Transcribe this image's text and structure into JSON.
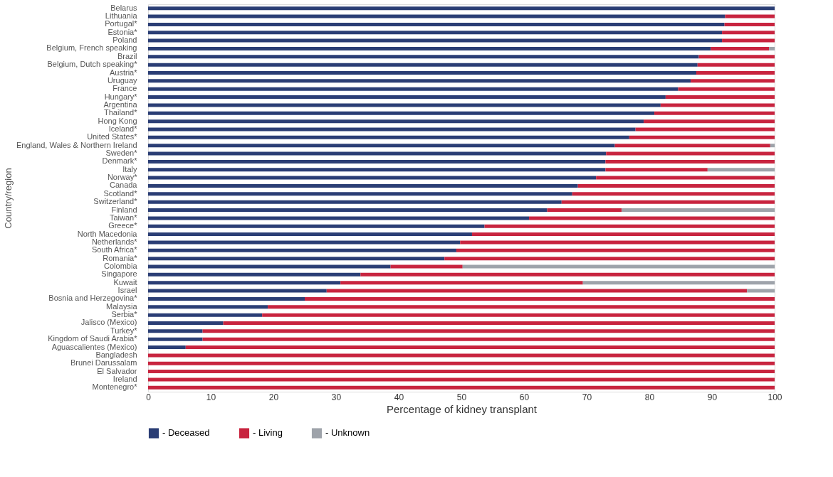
{
  "chart_data": {
    "type": "bar",
    "orientation": "horizontal",
    "stacked": true,
    "xlabel": "Percentage of kidney transplant",
    "ylabel": "Country/region",
    "categories": [
      "Belarus",
      "Lithuania",
      "Portugal*",
      "Estonia*",
      "Poland",
      "Belgium, French speaking",
      "Brazil",
      "Belgium, Dutch speaking*",
      "Austria*",
      "Uruguay",
      "France",
      "Hungary*",
      "Argentina",
      "Thailand*",
      "Hong Kong",
      "Iceland*",
      "United States*",
      "England, Wales & Northern Ireland",
      "Sweden*",
      "Denmark*",
      "Italy",
      "Norway*",
      "Canada",
      "Scotland*",
      "Switzerland*",
      "Finland",
      "Taiwan*",
      "Greece*",
      "North Macedonia",
      "Netherlands*",
      "South Africa*",
      "Romania*",
      "Colombia",
      "Singapore",
      "Kuwait",
      "Israel",
      "Bosnia and Herzegovina*",
      "Malaysia",
      "Serbia*",
      "Jalisco (Mexico)",
      "Turkey*",
      "Kingdom of Saudi Arabia*",
      "Aguascalientes (Mexico)",
      "Bangladesh",
      "Brunei Darussalam",
      "El Salvador",
      "Ireland",
      "Montenegro*"
    ],
    "series": [
      {
        "name": "- Deceased",
        "color": "#2b3e75",
        "values": [
          100,
          92.1,
          92.0,
          91.6,
          91.6,
          89.8,
          87.9,
          87.7,
          87.5,
          86.6,
          84.6,
          82.6,
          81.8,
          80.8,
          79.1,
          77.8,
          76.8,
          74.5,
          73.1,
          73.0,
          73.0,
          71.5,
          68.6,
          67.7,
          66.0,
          63.7,
          60.8,
          53.7,
          51.7,
          49.8,
          49.2,
          47.3,
          38.7,
          33.9,
          30.7,
          28.5,
          25.0,
          19.1,
          18.2,
          12.0,
          8.7,
          8.7,
          6.0,
          0,
          0,
          0,
          0,
          0
        ]
      },
      {
        "name": "- Living",
        "color": "#c8243f",
        "values": [
          0,
          7.9,
          8.0,
          8.4,
          8.4,
          9.3,
          12.1,
          12.3,
          12.5,
          13.4,
          15.4,
          17.4,
          18.2,
          19.2,
          20.9,
          22.2,
          23.2,
          24.8,
          26.9,
          27.0,
          16.3,
          28.5,
          31.4,
          32.3,
          34.0,
          11.9,
          39.2,
          46.3,
          48.3,
          50.2,
          50.8,
          52.7,
          11.5,
          66.1,
          38.7,
          67.1,
          75.0,
          80.9,
          81.8,
          88.0,
          91.3,
          91.3,
          94.0,
          100,
          100,
          100,
          100,
          100
        ]
      },
      {
        "name": "- Unknown",
        "color": "#9ea3aa",
        "values": [
          0,
          0,
          0,
          0,
          0,
          0.9,
          0,
          0,
          0,
          0,
          0,
          0,
          0,
          0,
          0,
          0,
          0,
          0.7,
          0,
          0,
          10.7,
          0,
          0,
          0,
          0,
          24.4,
          0,
          0,
          0,
          0,
          0,
          0,
          49.8,
          0,
          30.6,
          4.4,
          0,
          0,
          0,
          0,
          0,
          0,
          0,
          0,
          0,
          0,
          0,
          0
        ]
      }
    ],
    "xlim": [
      0,
      100
    ],
    "xticks": [
      0,
      10,
      20,
      30,
      40,
      50,
      60,
      70,
      80,
      90,
      100
    ],
    "grid": false,
    "legend": "bottom"
  }
}
